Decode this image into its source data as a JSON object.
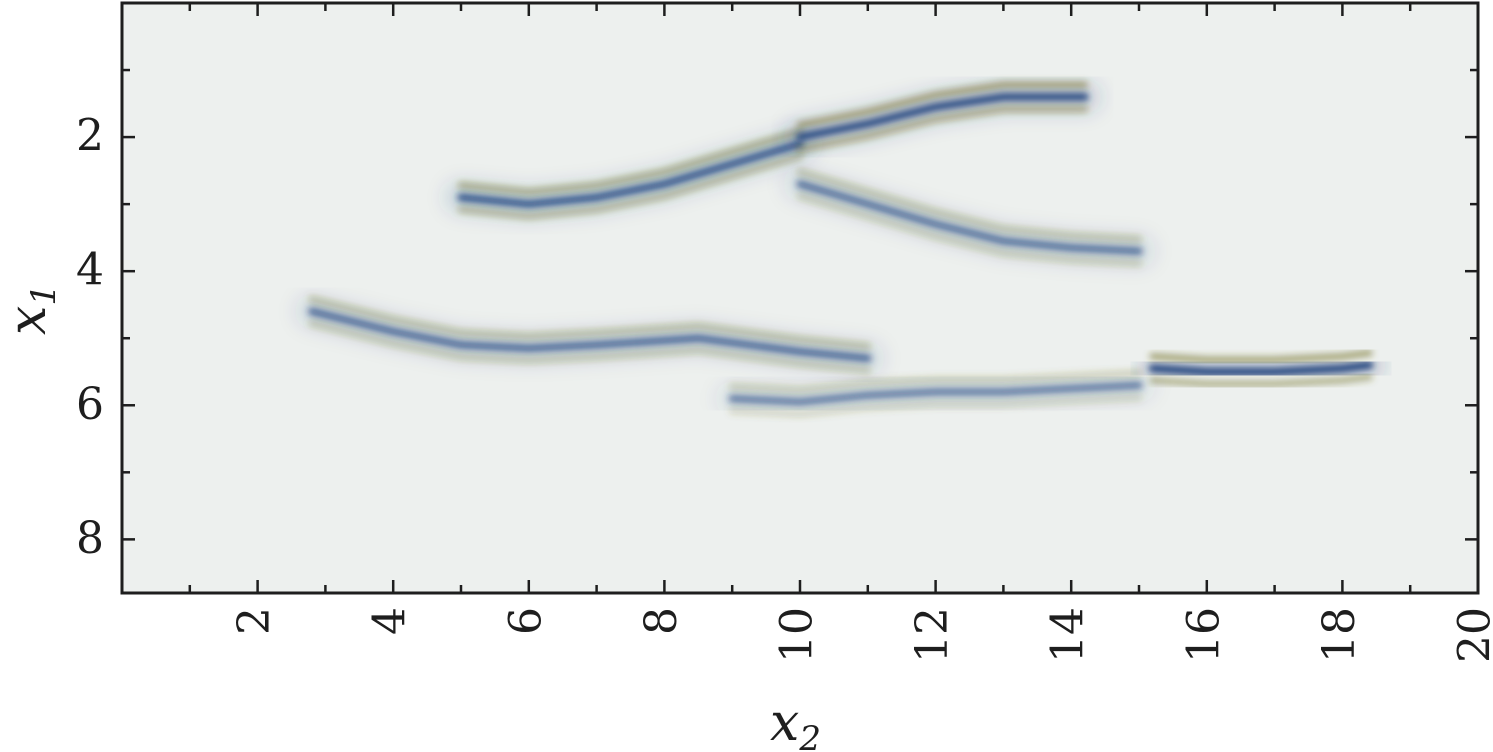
{
  "chart_data": {
    "type": "heatmap",
    "title": "",
    "xlabel": "x",
    "xlabel_sub": "2",
    "ylabel": "x",
    "ylabel_sub": "1",
    "xlim": [
      0,
      20
    ],
    "ylim": [
      8.8,
      0
    ],
    "x_ticks": [
      2,
      4,
      6,
      8,
      10,
      12,
      14,
      16,
      18,
      20
    ],
    "x_ticks_minor": [
      1,
      3,
      5,
      7,
      9,
      11,
      13,
      15,
      17,
      19
    ],
    "y_ticks": [
      2,
      4,
      6,
      8
    ],
    "y_ticks_minor": [
      1,
      3,
      5,
      7
    ],
    "grid": false,
    "colormap": {
      "negative": "#1c3f7a",
      "zero": "#edf0ee",
      "positive": "#6b6a1e"
    },
    "reflectors": [
      {
        "name": "upper-left",
        "points": [
          [
            5,
            2.9
          ],
          [
            6,
            3.0
          ],
          [
            7,
            2.9
          ],
          [
            8,
            2.7
          ],
          [
            9,
            2.4
          ],
          [
            10,
            2.1
          ]
        ],
        "strength": 0.8
      },
      {
        "name": "upper-right",
        "points": [
          [
            10,
            2.0
          ],
          [
            11,
            1.8
          ],
          [
            12,
            1.55
          ],
          [
            13,
            1.4
          ],
          [
            14.2,
            1.4
          ]
        ],
        "strength": 0.95
      },
      {
        "name": "diagonal",
        "points": [
          [
            10,
            2.7
          ],
          [
            11,
            3.0
          ],
          [
            12,
            3.3
          ],
          [
            13,
            3.55
          ],
          [
            14,
            3.65
          ],
          [
            15,
            3.7
          ]
        ],
        "strength": 0.55
      },
      {
        "name": "lower-left",
        "points": [
          [
            2.8,
            4.6
          ],
          [
            4,
            4.9
          ],
          [
            5,
            5.1
          ],
          [
            6,
            5.15
          ],
          [
            7,
            5.1
          ],
          [
            8.5,
            5.0
          ],
          [
            10,
            5.2
          ],
          [
            11,
            5.3
          ]
        ],
        "strength": 0.6
      },
      {
        "name": "lower-middle",
        "points": [
          [
            9,
            5.9
          ],
          [
            10,
            5.95
          ],
          [
            11,
            5.85
          ],
          [
            12,
            5.8
          ],
          [
            13,
            5.8
          ],
          [
            14,
            5.75
          ],
          [
            15,
            5.7
          ]
        ],
        "strength": 0.45
      },
      {
        "name": "lower-right",
        "points": [
          [
            15.2,
            5.45
          ],
          [
            16,
            5.5
          ],
          [
            17,
            5.5
          ],
          [
            18,
            5.45
          ],
          [
            18.4,
            5.4
          ]
        ],
        "strength": 1.0
      }
    ]
  }
}
